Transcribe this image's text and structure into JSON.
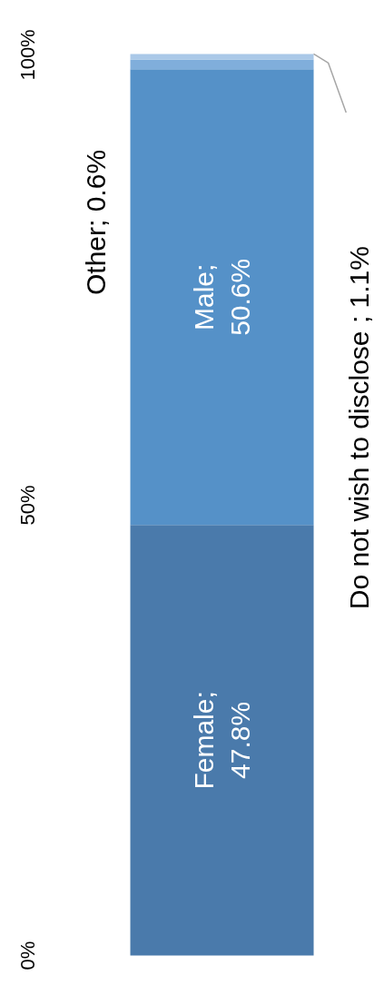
{
  "chart_data": {
    "type": "bar",
    "stacked": true,
    "categories": [
      null
    ],
    "series": [
      {
        "color": "#4a7aab",
        "values": [
          47.8
        ],
        "value_labels": [
          "Female;\n47.8%"
        ]
      },
      {
        "color": "#5591c8",
        "values": [
          50.6
        ],
        "value_labels": [
          "Male;\n50.6%"
        ]
      },
      {
        "color": "#80aedb",
        "values": [
          1.1
        ]
      },
      {
        "color": "#aac8e8",
        "values": [
          0.6
        ]
      }
    ],
    "ylim": [
      0,
      100.5
    ],
    "yticks": [
      {
        "value": 0,
        "label": "0%"
      },
      {
        "value": 50,
        "label": "50%"
      },
      {
        "value": 100,
        "label": "100%"
      }
    ],
    "annotations": [
      "Do not wish to disclose ; 1.1%",
      "Other; 0.6%"
    ],
    "grid": false
  }
}
